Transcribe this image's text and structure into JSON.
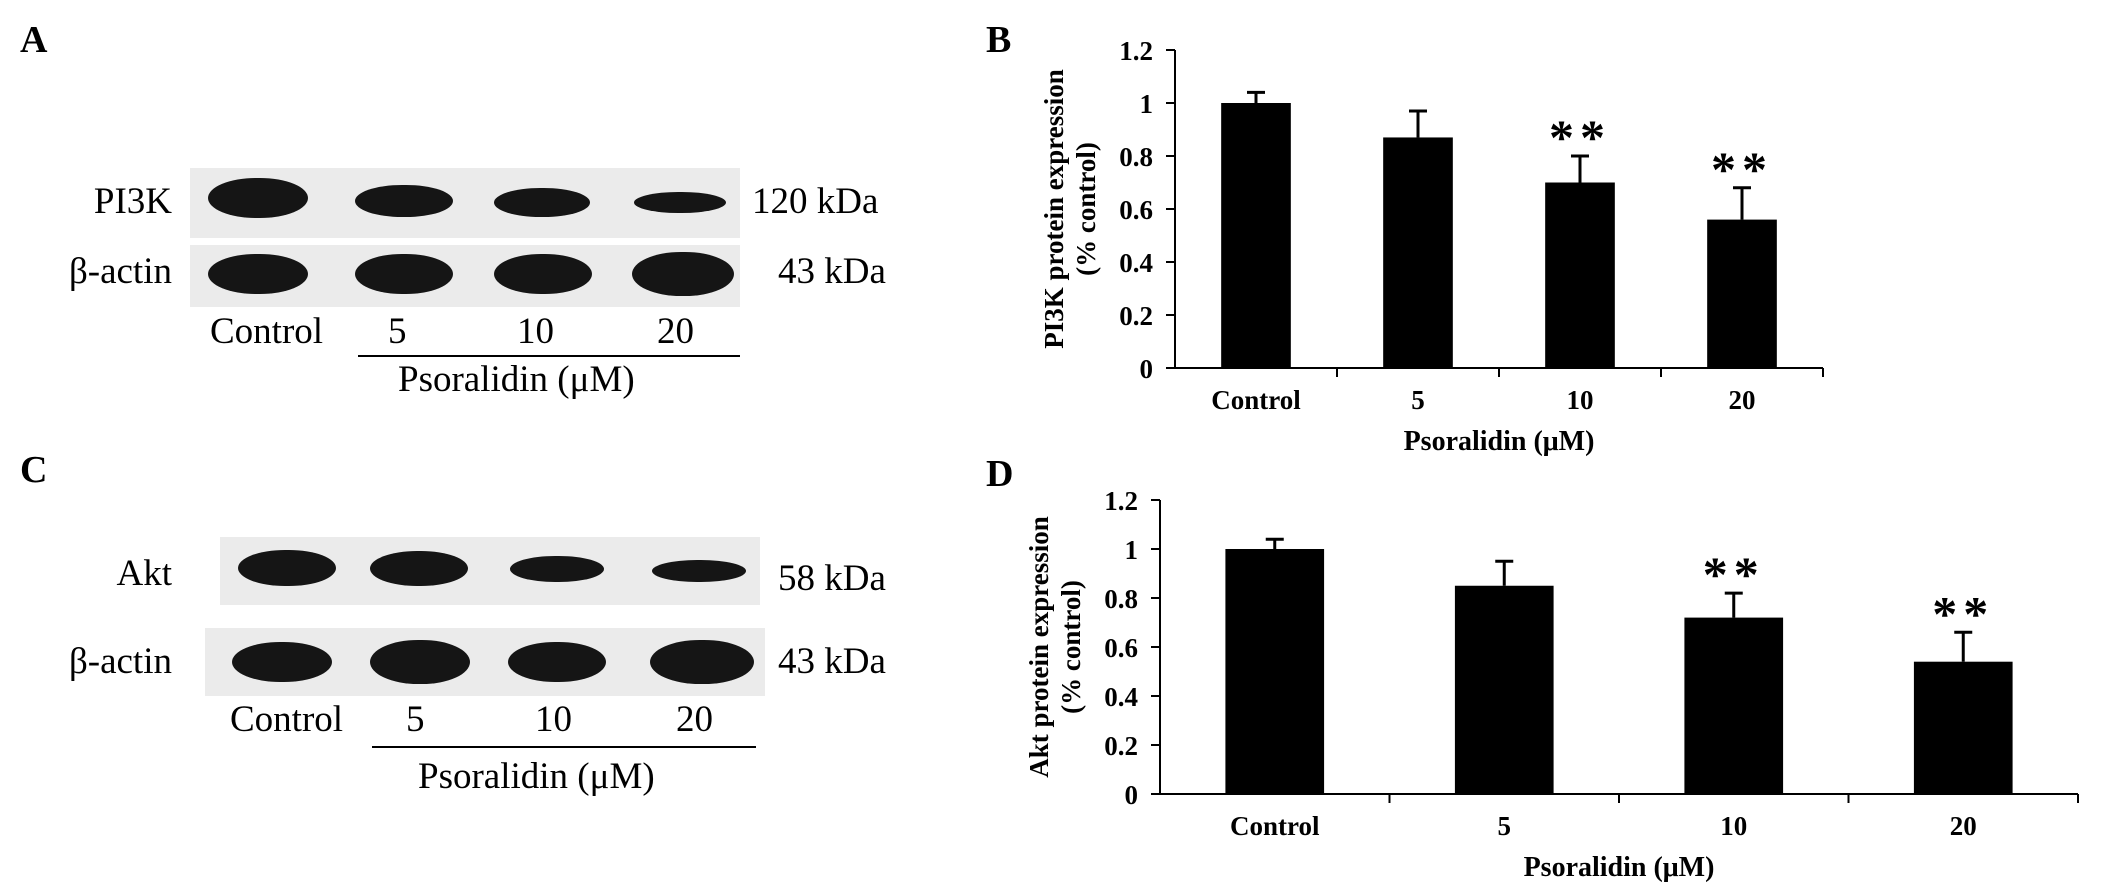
{
  "panels": {
    "A": {
      "letter": "A",
      "rows": [
        "PI3K",
        "β-actin"
      ],
      "sizes": [
        "120 kDa",
        "43 kDa"
      ],
      "lanes": [
        "Control",
        "5",
        "10",
        "20"
      ],
      "treatment": "Psoralidin (μM)",
      "band_intensity": [
        [
          1.0,
          0.87,
          0.82,
          0.55
        ],
        [
          1.0,
          1.0,
          1.0,
          1.0
        ]
      ]
    },
    "C": {
      "letter": "C",
      "rows": [
        "Akt",
        "β-actin"
      ],
      "sizes": [
        "58 kDa",
        "43 kDa"
      ],
      "lanes": [
        "Control",
        "5",
        "10",
        "20"
      ],
      "treatment": "Psoralidin (μM)",
      "band_intensity": [
        [
          1.0,
          0.9,
          0.7,
          0.55
        ],
        [
          1.0,
          1.0,
          1.0,
          1.0
        ]
      ]
    },
    "B": {
      "letter": "B"
    },
    "D": {
      "letter": "D"
    }
  },
  "chart_data": [
    {
      "panel": "B",
      "type": "bar",
      "categories": [
        "Control",
        "5",
        "10",
        "20"
      ],
      "values": [
        1.0,
        0.87,
        0.7,
        0.56
      ],
      "errors": [
        0.04,
        0.1,
        0.1,
        0.12
      ],
      "significance": [
        "",
        "",
        "**",
        "**"
      ],
      "title": "",
      "xlabel": "Psoralidin (μM)",
      "ylabel": [
        "PI3K protein expression",
        "(% control)"
      ],
      "ylim": [
        0,
        1.2
      ],
      "yticks": [
        "0",
        "0.2",
        "0.4",
        "0.6",
        "0.8",
        "1",
        "1.2"
      ],
      "bar_color": "#000000",
      "grid": false
    },
    {
      "panel": "D",
      "type": "bar",
      "categories": [
        "Control",
        "5",
        "10",
        "20"
      ],
      "values": [
        1.0,
        0.85,
        0.72,
        0.54
      ],
      "errors": [
        0.04,
        0.1,
        0.1,
        0.12
      ],
      "significance": [
        "",
        "",
        "**",
        "**"
      ],
      "title": "",
      "xlabel": "Psoralidin (μM)",
      "ylabel": [
        "Akt protein expression",
        "(% control)"
      ],
      "ylim": [
        0,
        1.2
      ],
      "yticks": [
        "0",
        "0.2",
        "0.4",
        "0.6",
        "0.8",
        "1",
        "1.2"
      ],
      "bar_color": "#000000",
      "grid": false
    }
  ]
}
